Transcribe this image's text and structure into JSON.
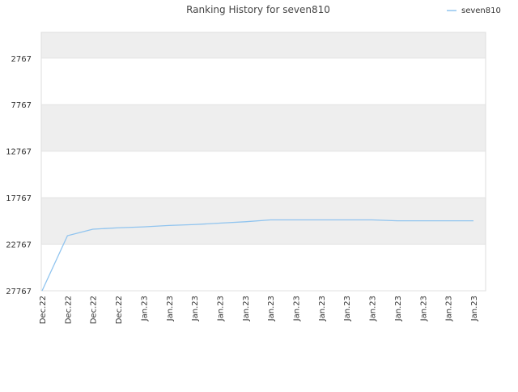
{
  "chart_data": {
    "type": "line",
    "title": "Ranking History for seven810",
    "categories": [
      "Dec.22",
      "Dec.22",
      "Dec.22",
      "Dec.22",
      "Jan.23",
      "Jan.23",
      "Jan.23",
      "Jan.23",
      "Jan.23",
      "Jan.23",
      "Jan.23",
      "Jan.23",
      "Jan.23",
      "Jan.23",
      "Jan.23",
      "Jan.23",
      "Jan.23",
      "Jan.23"
    ],
    "series": [
      {
        "name": "seven810",
        "color": "#90c4ef",
        "values": [
          27767,
          21850,
          21150,
          21000,
          20900,
          20750,
          20650,
          20500,
          20350,
          20150,
          20150,
          20150,
          20150,
          20150,
          20250,
          20250,
          20250,
          20250
        ]
      }
    ],
    "ylim": [
      27767,
      0
    ],
    "yticks": [
      2767,
      7767,
      12767,
      17767,
      22767,
      27767
    ],
    "y_inverted": true,
    "legend": "top-right",
    "grid": true
  }
}
